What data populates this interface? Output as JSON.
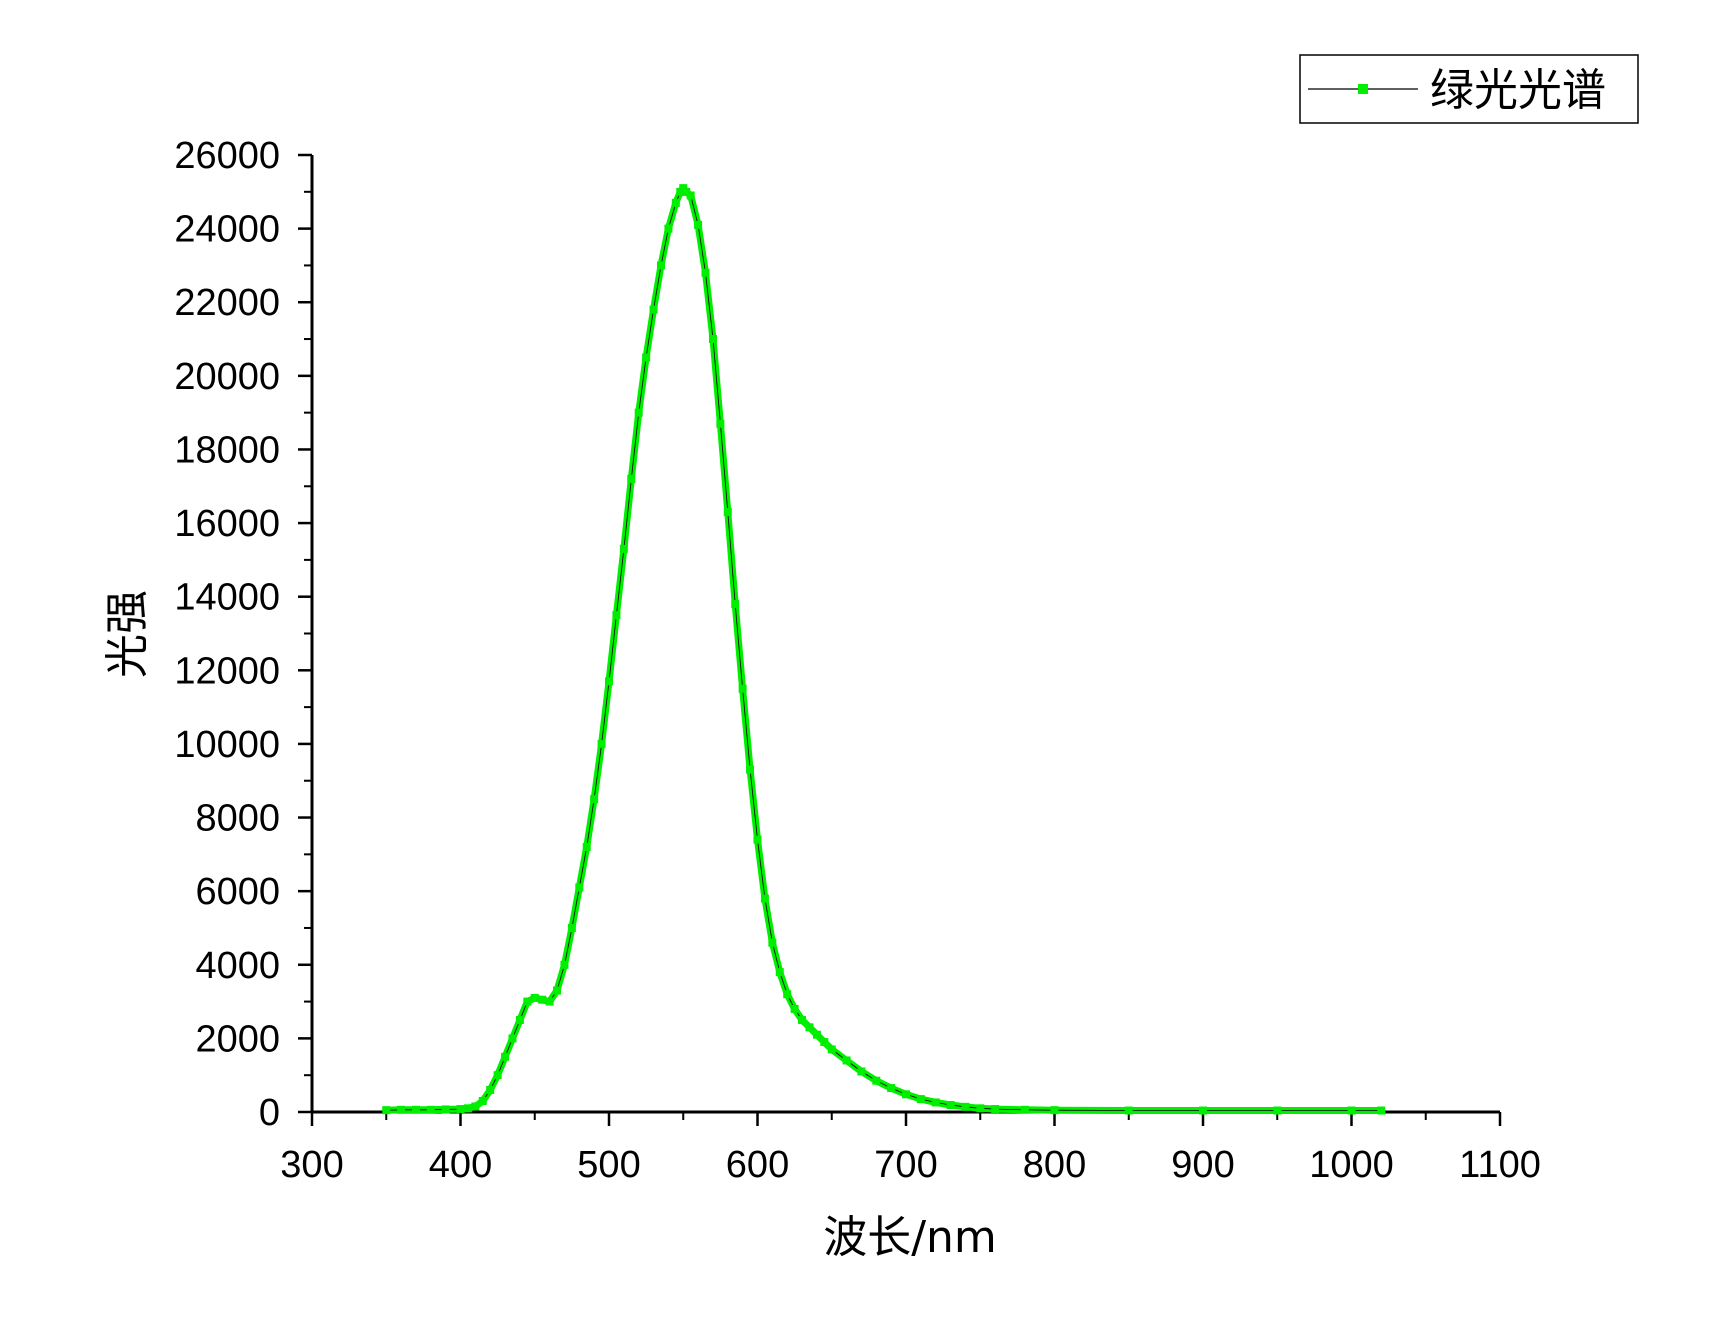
{
  "chart_data": {
    "type": "line",
    "title": "",
    "xlabel": "波长/nm",
    "ylabel": "光强",
    "xlim": [
      300,
      1100
    ],
    "ylim": [
      0,
      26000
    ],
    "x_ticks": [
      "300",
      "400",
      "500",
      "600",
      "700",
      "800",
      "900",
      "1000",
      "1100"
    ],
    "y_ticks": [
      "0",
      "2000",
      "4000",
      "6000",
      "8000",
      "10000",
      "12000",
      "14000",
      "16000",
      "18000",
      "20000",
      "22000",
      "24000",
      "26000"
    ],
    "grid": false,
    "legend_position": "top-right",
    "series": [
      {
        "name": "绿光光谱",
        "color": "#00ee00",
        "marker": "square",
        "x": [
          350,
          360,
          370,
          380,
          390,
          400,
          405,
          410,
          415,
          420,
          425,
          430,
          435,
          440,
          445,
          450,
          455,
          460,
          465,
          470,
          475,
          480,
          485,
          490,
          495,
          500,
          505,
          510,
          515,
          520,
          525,
          530,
          535,
          540,
          545,
          548,
          550,
          552,
          555,
          560,
          565,
          570,
          575,
          580,
          585,
          590,
          595,
          600,
          605,
          610,
          615,
          620,
          625,
          630,
          635,
          640,
          645,
          650,
          660,
          670,
          680,
          690,
          700,
          710,
          720,
          730,
          740,
          750,
          760,
          780,
          800,
          850,
          900,
          950,
          1000,
          1020
        ],
        "y": [
          50,
          60,
          60,
          60,
          70,
          80,
          100,
          150,
          300,
          600,
          1000,
          1500,
          2000,
          2500,
          3000,
          3100,
          3050,
          3000,
          3300,
          4000,
          5000,
          6100,
          7200,
          8500,
          10000,
          11700,
          13500,
          15300,
          17200,
          19000,
          20500,
          21800,
          23000,
          24000,
          24700,
          25000,
          25100,
          25000,
          24900,
          24100,
          22800,
          21000,
          18700,
          16300,
          13800,
          11500,
          9300,
          7400,
          5800,
          4600,
          3800,
          3200,
          2800,
          2500,
          2300,
          2100,
          1900,
          1700,
          1400,
          1100,
          850,
          650,
          480,
          350,
          260,
          190,
          140,
          100,
          80,
          60,
          50,
          40,
          40,
          40,
          40,
          40
        ]
      }
    ]
  }
}
